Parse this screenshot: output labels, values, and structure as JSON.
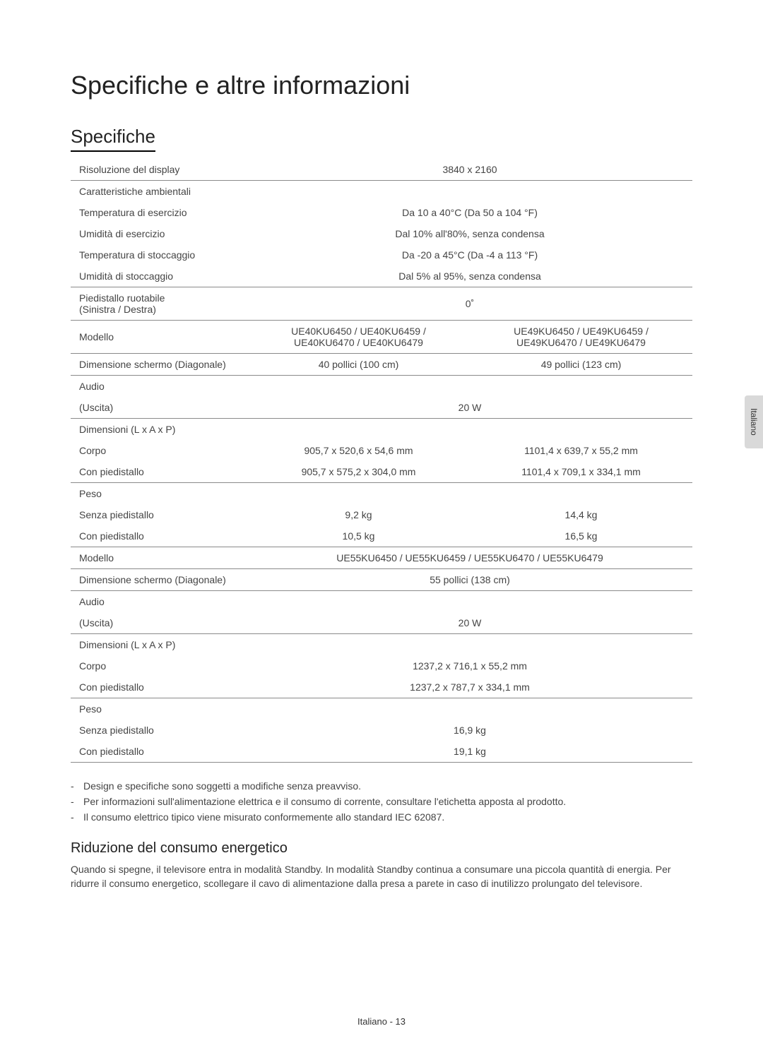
{
  "language_tab": "Italiano",
  "title": "Specifiche e altre informazioni",
  "section_heading": "Specifiche",
  "table": {
    "rows": [
      {
        "label": "Risoluzione del display",
        "span": "3840 x 2160",
        "thick": true
      },
      {
        "label": "Caratteristiche ambientali",
        "span": "",
        "noborder": true
      },
      {
        "label": "Temperatura di esercizio",
        "span": "Da 10 a 40°C (Da 50 a 104 °F)",
        "noborder": true
      },
      {
        "label": "Umidità di esercizio",
        "span": "Dal 10% all'80%, senza condensa",
        "noborder": true
      },
      {
        "label": "Temperatura di stoccaggio",
        "span": "Da -20 a 45°C (Da -4 a 113 °F)",
        "noborder": true
      },
      {
        "label": "Umidità di stoccaggio",
        "span": "Dal 5% al 95%, senza condensa",
        "thick": true
      },
      {
        "label": "Piedistallo ruotabile\n(Sinistra / Destra)",
        "span": "0˚",
        "thick": true
      },
      {
        "label": "Modello",
        "col1": "UE40KU6450 / UE40KU6459 /\nUE40KU6470 / UE40KU6479",
        "col2": "UE49KU6450 / UE49KU6459 /\nUE49KU6470 / UE49KU6479",
        "thick": true
      },
      {
        "label": "Dimensione schermo (Diagonale)",
        "col1": "40 pollici (100 cm)",
        "col2": "49 pollici (123 cm)",
        "thick": true
      },
      {
        "label": "Audio",
        "span": "",
        "noborder": true
      },
      {
        "label": "(Uscita)",
        "span": "20 W",
        "thick": true
      },
      {
        "label": "Dimensioni (L x A x P)",
        "col1": "",
        "col2": "",
        "noborder": true
      },
      {
        "label": "Corpo",
        "col1": "905,7 x 520,6 x 54,6 mm",
        "col2": "1101,4 x 639,7 x 55,2 mm",
        "noborder": true
      },
      {
        "label": "Con piedistallo",
        "col1": "905,7 x 575,2 x 304,0 mm",
        "col2": "1101,4 x 709,1 x 334,1 mm",
        "thick": true
      },
      {
        "label": "Peso",
        "span": "",
        "noborder": true
      },
      {
        "label": "Senza piedistallo",
        "col1": "9,2 kg",
        "col2": "14,4 kg",
        "noborder": true
      },
      {
        "label": "Con piedistallo",
        "col1": "10,5 kg",
        "col2": "16,5 kg",
        "thick": true
      },
      {
        "label": "Modello",
        "span": "UE55KU6450 / UE55KU6459 / UE55KU6470 / UE55KU6479",
        "thick": true
      },
      {
        "label": "Dimensione schermo (Diagonale)",
        "span": "55 pollici (138 cm)",
        "thick": true
      },
      {
        "label": "Audio",
        "span": "",
        "noborder": true
      },
      {
        "label": "(Uscita)",
        "span": "20 W",
        "thick": true
      },
      {
        "label": "Dimensioni (L x A x P)",
        "span": "",
        "noborder": true
      },
      {
        "label": "Corpo",
        "span": "1237,2 x 716,1 x 55,2 mm",
        "noborder": true
      },
      {
        "label": "Con piedistallo",
        "span": "1237,2 x 787,7 x 334,1 mm",
        "thick": true
      },
      {
        "label": "Peso",
        "span": "",
        "noborder": true
      },
      {
        "label": "Senza piedistallo",
        "span": "16,9 kg",
        "noborder": true
      },
      {
        "label": "Con piedistallo",
        "span": "19,1 kg",
        "thick": true
      }
    ]
  },
  "notes": [
    "Design e specifiche sono soggetti a modifiche senza preavviso.",
    "Per informazioni sull'alimentazione elettrica e il consumo di corrente, consultare l'etichetta apposta al prodotto.",
    "Il consumo elettrico tipico viene misurato conformemente allo standard IEC 62087."
  ],
  "subsection_heading": "Riduzione del consumo energetico",
  "subsection_text": "Quando si spegne, il televisore entra in modalità Standby. In modalità Standby continua a consumare una piccola quantità di energia. Per ridurre il consumo energetico, scollegare il cavo di alimentazione dalla presa a parete in caso di inutilizzo prolungato del televisore.",
  "footer": "Italiano - 13"
}
